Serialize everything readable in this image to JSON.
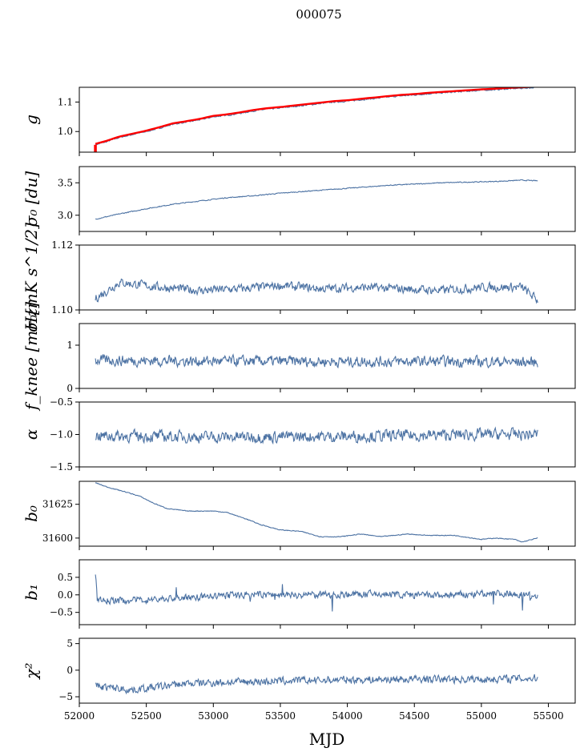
{
  "figure": {
    "title": "000075",
    "xlabel": "MJD"
  },
  "colors": {
    "series": "#4c72a3",
    "overlay": "#ff0000",
    "axes": "#000000"
  },
  "chart_data": {
    "type": "line",
    "x_range": [
      52000,
      55700
    ],
    "x_ticks": [
      52000,
      52500,
      53000,
      53500,
      54000,
      54500,
      55000,
      55500
    ],
    "x_tick_labels": [
      "52000",
      "52500",
      "53000",
      "53500",
      "54000",
      "54500",
      "55000",
      "55500"
    ],
    "x_start": 52120,
    "x_end": 55420,
    "panels": [
      {
        "id": "g",
        "ylabel": "g",
        "ylim": [
          0.93,
          1.15
        ],
        "yticks": [
          1.0,
          1.1
        ],
        "ytick_labels": [
          "1.0",
          "1.1"
        ],
        "overlay": true,
        "series": {
          "x": [
            52120,
            52200,
            52300,
            52400,
            52500,
            52600,
            52700,
            52800,
            52900,
            53000,
            53100,
            53200,
            53300,
            53400,
            53500,
            53600,
            53700,
            53800,
            53900,
            54000,
            54100,
            54200,
            54300,
            54400,
            54500,
            54600,
            54700,
            54800,
            54900,
            55000,
            55100,
            55200,
            55300,
            55420
          ],
          "y": [
            0.955,
            0.965,
            0.98,
            0.99,
            1.0,
            1.012,
            1.025,
            1.032,
            1.04,
            1.05,
            1.055,
            1.062,
            1.07,
            1.076,
            1.08,
            1.085,
            1.09,
            1.095,
            1.1,
            1.103,
            1.108,
            1.112,
            1.117,
            1.121,
            1.124,
            1.128,
            1.131,
            1.134,
            1.137,
            1.14,
            1.142,
            1.145,
            1.147,
            1.15
          ],
          "noise": 0.002
        }
      },
      {
        "id": "sigma0_du",
        "ylabel": "σ₀ [du]",
        "ylim": [
          2.75,
          3.75
        ],
        "yticks": [
          3.0,
          3.5
        ],
        "ytick_labels": [
          "3.0",
          "3.5"
        ],
        "series": {
          "x": [
            52120,
            52300,
            52500,
            52700,
            52900,
            53100,
            53300,
            53500,
            53700,
            53900,
            54100,
            54300,
            54500,
            54700,
            54900,
            55100,
            55300,
            55420
          ],
          "y": [
            2.94,
            3.02,
            3.1,
            3.17,
            3.22,
            3.27,
            3.3,
            3.34,
            3.37,
            3.4,
            3.43,
            3.46,
            3.48,
            3.5,
            3.51,
            3.52,
            3.54,
            3.53
          ],
          "noise": 0.006
        }
      },
      {
        "id": "sigma0_mk",
        "ylabel": "σ₀[mK s^1/2]",
        "ylim": [
          1.1,
          1.12
        ],
        "yticks": [
          1.1,
          1.12
        ],
        "ytick_labels": [
          "1.10",
          "1.12"
        ],
        "series": {
          "x": [
            52120,
            52300,
            52600,
            52900,
            53200,
            53500,
            53800,
            54100,
            54400,
            54700,
            55000,
            55300,
            55420
          ],
          "y": [
            1.1035,
            1.1085,
            1.107,
            1.106,
            1.1065,
            1.1075,
            1.1065,
            1.107,
            1.1065,
            1.106,
            1.107,
            1.107,
            1.103
          ],
          "noise": 0.0012
        }
      },
      {
        "id": "fknee",
        "ylabel": "f_knee [mHz]",
        "ylim": [
          0,
          1.5
        ],
        "yticks": [
          0,
          1
        ],
        "ytick_labels": [
          "0",
          "1"
        ],
        "series": {
          "x": [
            52120,
            53000,
            54000,
            55000,
            55420
          ],
          "y": [
            0.65,
            0.63,
            0.62,
            0.62,
            0.6
          ],
          "noise": 0.11
        }
      },
      {
        "id": "alpha",
        "ylabel": "α",
        "ylim": [
          -1.5,
          -0.5
        ],
        "yticks": [
          -1.5,
          -1.0,
          -0.5
        ],
        "ytick_labels": [
          "−1.5",
          "−1.0",
          "−0.5"
        ],
        "series": {
          "x": [
            52120,
            53000,
            54000,
            55000,
            55420
          ],
          "y": [
            -1.02,
            -1.04,
            -1.03,
            -1.0,
            -1.0
          ],
          "noise": 0.08
        }
      },
      {
        "id": "b0",
        "ylabel": "b₀",
        "ylim": [
          31594,
          31642
        ],
        "yticks": [
          31600,
          31625
        ],
        "ytick_labels": [
          "31600",
          "31625"
        ],
        "series": {
          "x": [
            52120,
            52200,
            52350,
            52450,
            52550,
            52650,
            52800,
            53000,
            53100,
            53250,
            53350,
            53500,
            53650,
            53800,
            53950,
            54100,
            54250,
            54450,
            54600,
            54800,
            55000,
            55100,
            55250,
            55300,
            55420
          ],
          "y": [
            31641,
            31638,
            31634,
            31631,
            31626,
            31622,
            31620,
            31620,
            31619,
            31614,
            31610,
            31606,
            31605,
            31601,
            31601,
            31603,
            31601,
            31603,
            31602,
            31602,
            31599,
            31600,
            31599,
            31597,
            31600
          ],
          "noise": 0.25
        }
      },
      {
        "id": "b1",
        "ylabel": "b₁",
        "ylim": [
          -0.85,
          1.0
        ],
        "yticks": [
          -0.5,
          0.0,
          0.5
        ],
        "ytick_labels": [
          "−0.5",
          "0.0",
          "0.5"
        ],
        "series": {
          "x": [
            52120,
            52135,
            52300,
            52700,
            53200,
            53700,
            54200,
            54700,
            55200,
            55420
          ],
          "y": [
            0.58,
            -0.15,
            -0.17,
            -0.1,
            0.0,
            0.0,
            0.02,
            -0.02,
            0.05,
            -0.02
          ],
          "noise": 0.09
        }
      },
      {
        "id": "chi2",
        "ylabel": "χ²",
        "ylim": [
          -6.2,
          6.0
        ],
        "yticks": [
          -5,
          0,
          5
        ],
        "ytick_labels": [
          "−5",
          "0",
          "5"
        ],
        "series": {
          "x": [
            52120,
            52400,
            52800,
            53200,
            53600,
            54000,
            54500,
            55000,
            55420
          ],
          "y": [
            -3.0,
            -3.7,
            -2.5,
            -2.2,
            -2.0,
            -1.8,
            -1.7,
            -1.7,
            -1.5
          ],
          "noise": 0.65
        }
      }
    ]
  }
}
